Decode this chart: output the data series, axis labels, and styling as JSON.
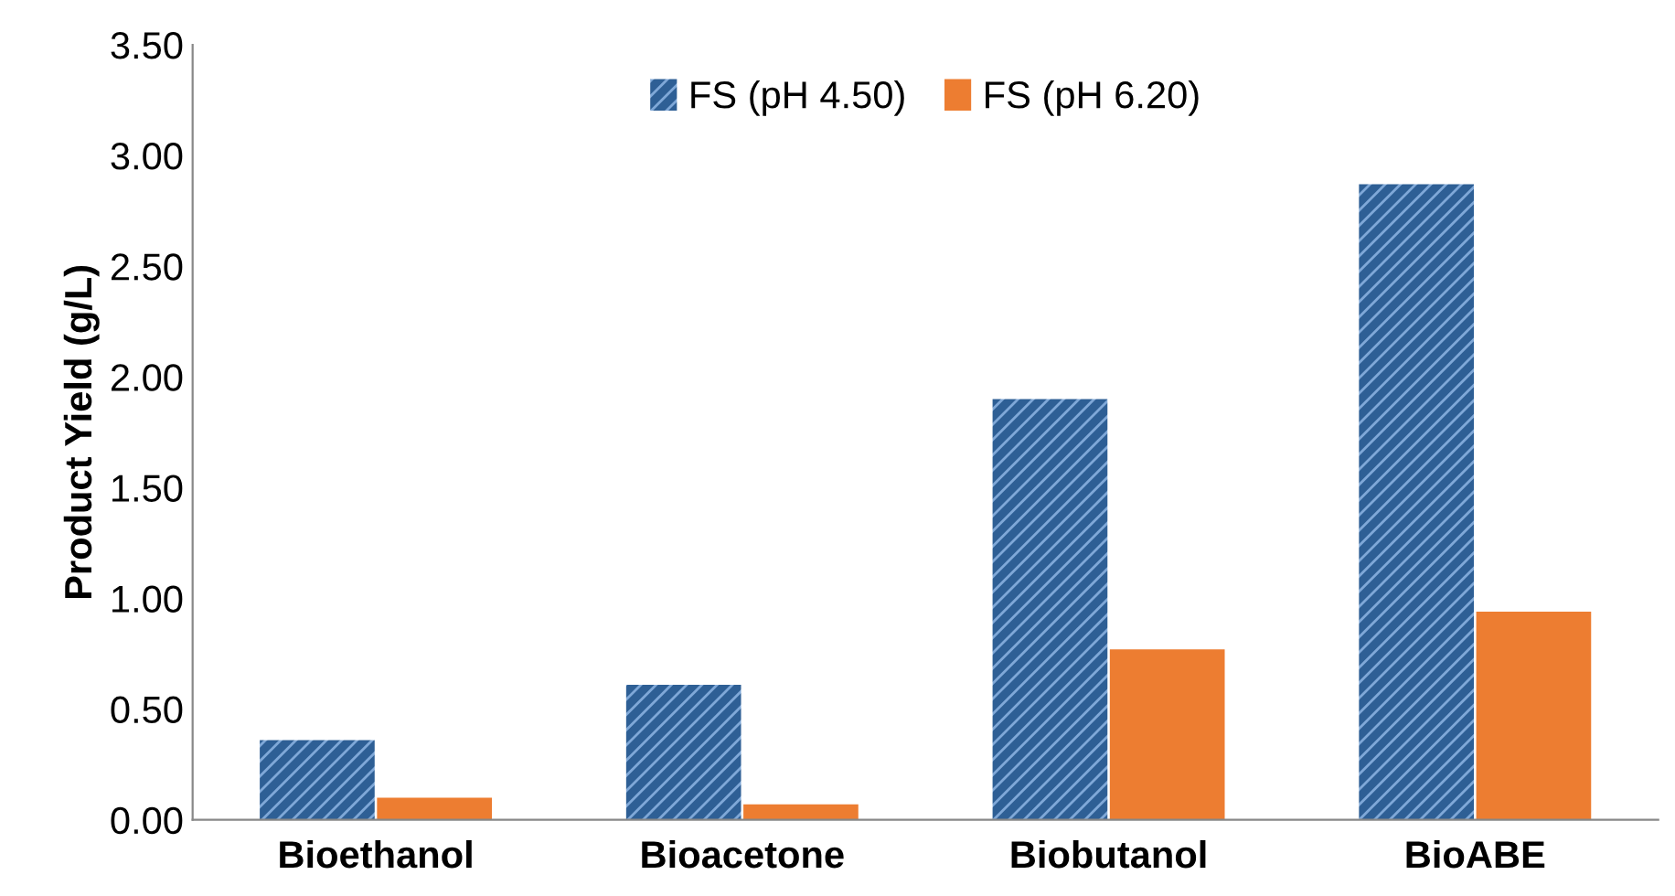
{
  "chart_data": {
    "type": "bar",
    "ylabel": "Product Yield (g/L)",
    "categories": [
      "Bioethanol",
      "Bioacetone",
      "Biobutanol",
      "BioABE"
    ],
    "series": [
      {
        "name": "FS (pH 4.50)",
        "color": "#2e5f95",
        "values": [
          0.36,
          0.61,
          1.9,
          2.87
        ]
      },
      {
        "name": "FS (pH 6.20)",
        "color": "#ed7d31",
        "values": [
          0.1,
          0.07,
          0.77,
          0.94
        ]
      }
    ],
    "ylim": [
      0,
      3.5
    ],
    "yticks": [
      {
        "value": 0,
        "label": "0.00"
      },
      {
        "value": 0.5,
        "label": "0.50"
      },
      {
        "value": 1,
        "label": "1.00"
      },
      {
        "value": 1.5,
        "label": "1.50"
      },
      {
        "value": 2,
        "label": "2.00"
      },
      {
        "value": 2.5,
        "label": "2.50"
      },
      {
        "value": 3,
        "label": "3.00"
      },
      {
        "value": 3.5,
        "label": "3.50"
      }
    ],
    "grid": false,
    "legend": "top"
  }
}
